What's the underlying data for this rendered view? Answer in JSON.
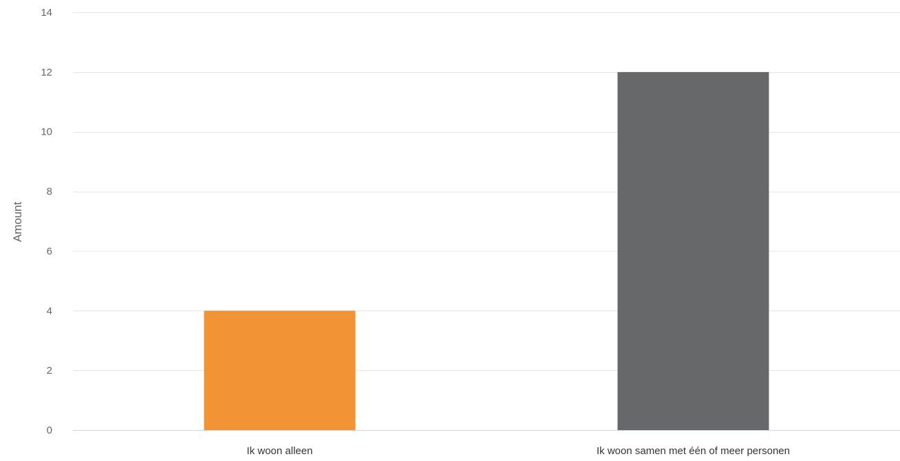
{
  "chart_data": {
    "type": "bar",
    "title": "",
    "xlabel": "",
    "ylabel": "Amount",
    "ylim": [
      0,
      14
    ],
    "yticks": [
      0,
      2,
      4,
      6,
      8,
      10,
      12,
      14
    ],
    "grid": true,
    "legend": "none",
    "categories": [
      "Ik woon alleen",
      "Ik woon samen met één of meer personen"
    ],
    "values": [
      4,
      12
    ],
    "colors": [
      "#f29335",
      "#666869"
    ]
  },
  "colors": {
    "gridline": "#e6e6e6",
    "baseline": "#ccd6eb"
  }
}
